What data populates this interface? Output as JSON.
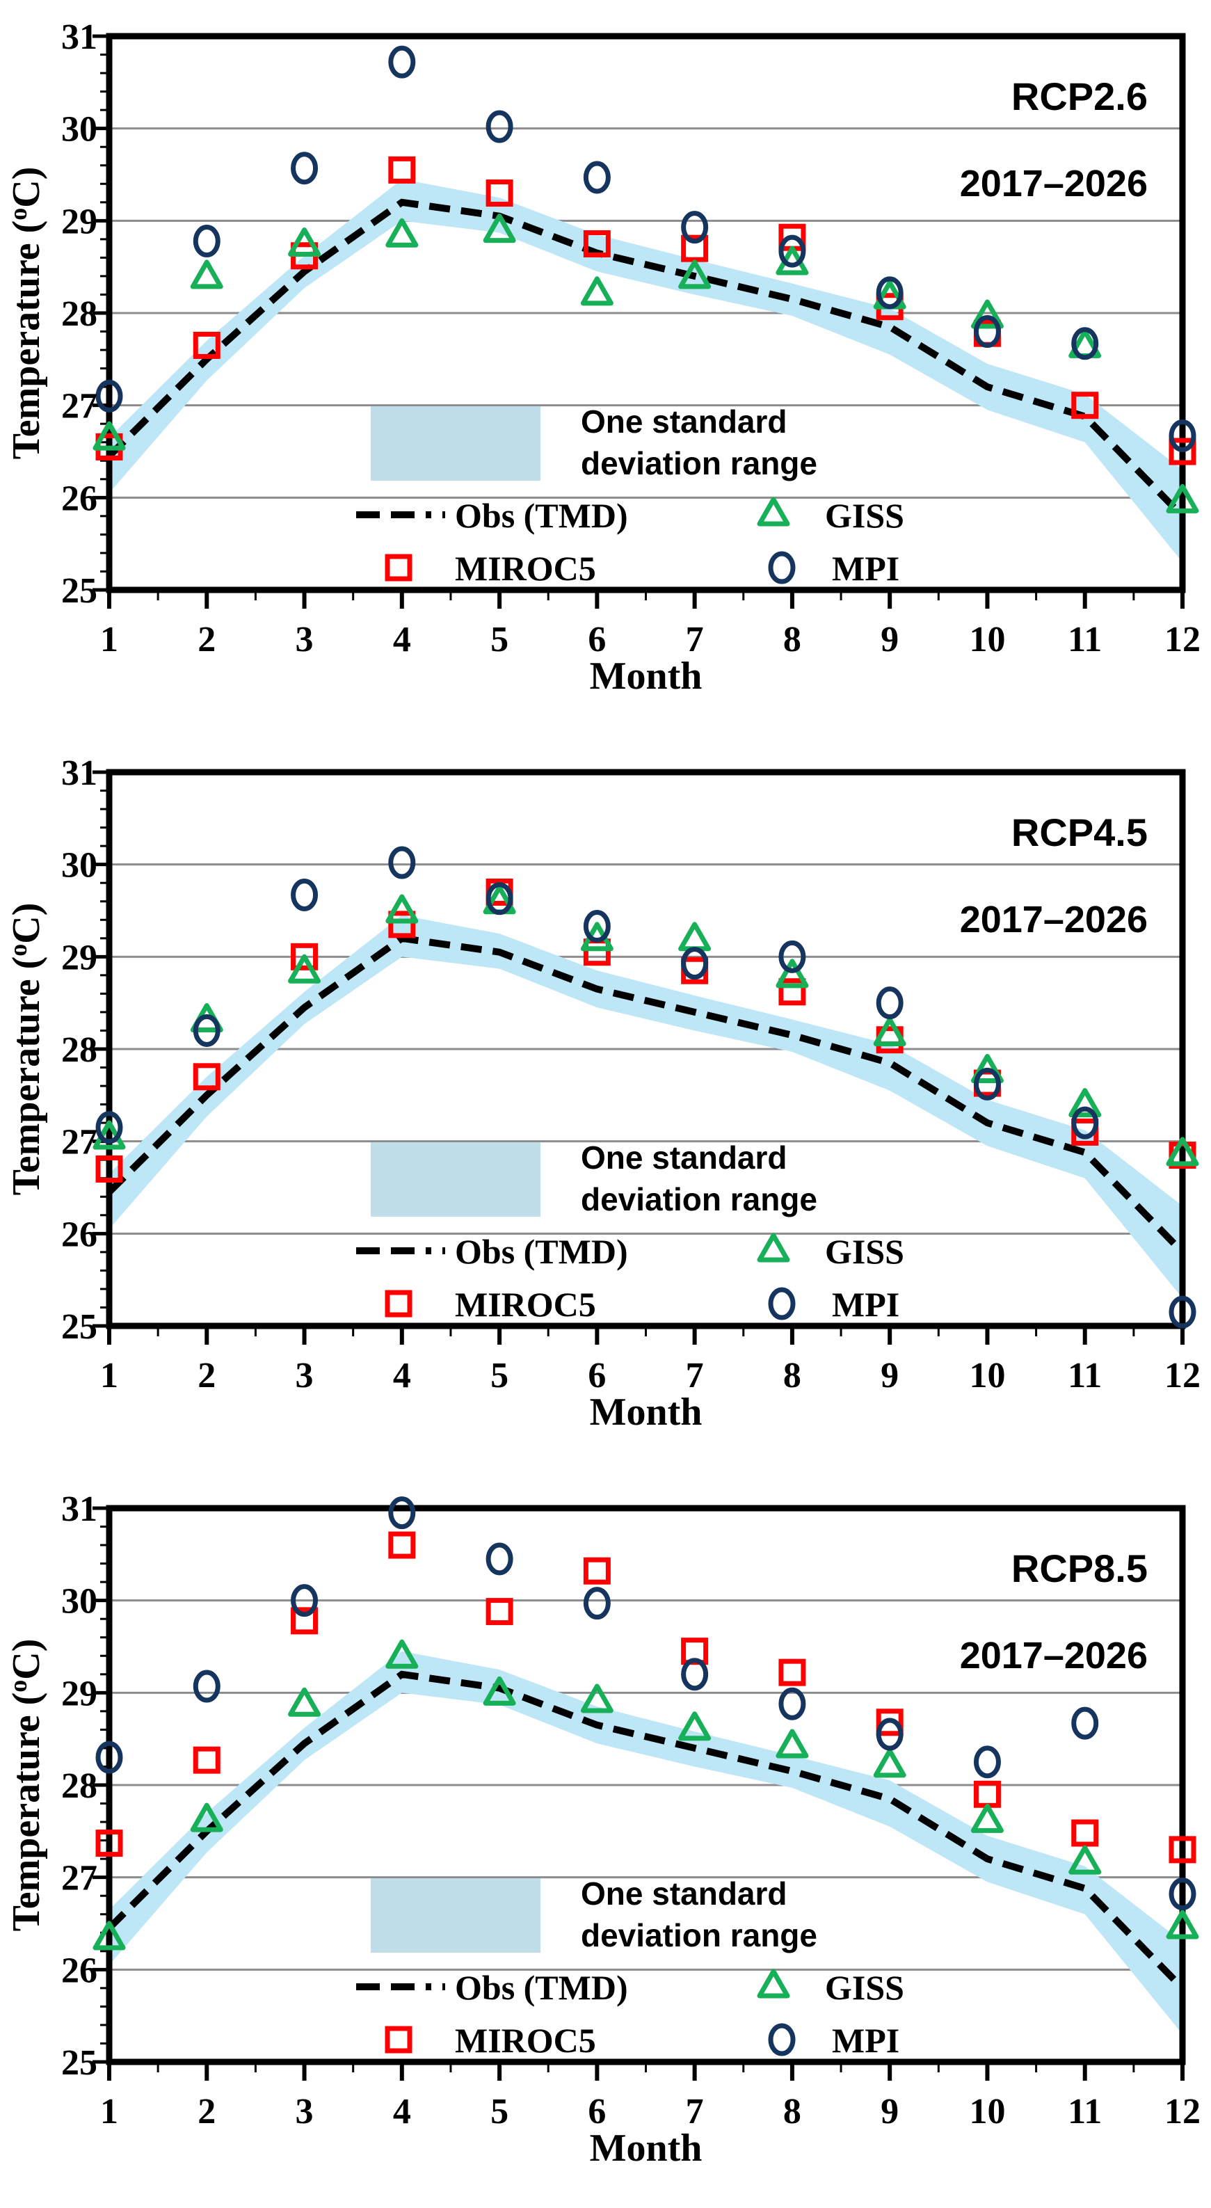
{
  "axes": {
    "x_label": "Month",
    "y_label_prefix": "Temperature (",
    "y_label_degree": "o",
    "y_label_suffix": "C)",
    "y_ticks": [
      25,
      26,
      27,
      28,
      29,
      30,
      31
    ],
    "x_ticks": [
      1,
      2,
      3,
      4,
      5,
      6,
      7,
      8,
      9,
      10,
      11,
      12
    ],
    "ylim": [
      25,
      31
    ],
    "grid_values": [
      26,
      27,
      28,
      29,
      30
    ]
  },
  "legend": {
    "band_label_line1": "One standard",
    "band_label_line2": "deviation range",
    "obs_label": "Obs (TMD)",
    "giss_label": "GISS",
    "miroc5_label": "MIROC5",
    "mpi_label": "MPI"
  },
  "colors": {
    "red": "#FF0000",
    "green": "#17B058",
    "navy": "#16355E",
    "band": "#BDE6F7",
    "legend_box": "#BFDEE9",
    "gridline": "#8C8C8C",
    "obs_line": "#000000",
    "text": "#000000"
  },
  "chart_data": [
    {
      "type": "line+scatter",
      "title": "RCP2.6",
      "period": "2017–2026",
      "xlabel": "Month",
      "ylabel": "Temperature (°C)",
      "ylim": [
        25,
        31
      ],
      "months": [
        1,
        2,
        3,
        4,
        5,
        6,
        7,
        8,
        9,
        10,
        11,
        12
      ],
      "obs_tmd": [
        26.45,
        27.5,
        28.45,
        29.2,
        29.05,
        28.65,
        28.4,
        28.15,
        27.85,
        27.2,
        26.88,
        25.8
      ],
      "std_band_upper": [
        26.65,
        27.7,
        28.62,
        29.45,
        29.25,
        28.85,
        28.58,
        28.32,
        28.05,
        27.45,
        27.12,
        26.3
      ],
      "std_band_lower": [
        26.05,
        27.27,
        28.27,
        29.0,
        28.87,
        28.45,
        28.2,
        27.97,
        27.55,
        26.95,
        26.6,
        25.3
      ],
      "models": [
        {
          "name": "MIROC5",
          "marker": "square",
          "color_key": "red",
          "values": [
            26.55,
            27.65,
            28.62,
            29.55,
            29.3,
            28.75,
            28.7,
            28.82,
            28.07,
            27.78,
            27.0,
            26.5
          ]
        },
        {
          "name": "GISS",
          "marker": "triangle",
          "color_key": "green",
          "values": [
            26.65,
            28.4,
            28.75,
            28.85,
            28.9,
            28.22,
            28.4,
            28.55,
            28.18,
            27.97,
            27.65,
            25.97
          ]
        },
        {
          "name": "MPI",
          "marker": "circle",
          "color_key": "navy",
          "values": [
            27.1,
            28.78,
            29.57,
            30.72,
            30.02,
            29.47,
            28.93,
            28.67,
            28.22,
            27.8,
            27.67,
            26.67
          ]
        }
      ]
    },
    {
      "type": "line+scatter",
      "title": "RCP4.5",
      "period": "2017–2026",
      "xlabel": "Month",
      "ylabel": "Temperature (°C)",
      "ylim": [
        25,
        31
      ],
      "months": [
        1,
        2,
        3,
        4,
        5,
        6,
        7,
        8,
        9,
        10,
        11,
        12
      ],
      "obs_tmd": [
        26.45,
        27.5,
        28.45,
        29.2,
        29.05,
        28.65,
        28.4,
        28.15,
        27.85,
        27.2,
        26.88,
        25.8
      ],
      "std_band_upper": [
        26.65,
        27.7,
        28.62,
        29.45,
        29.25,
        28.85,
        28.58,
        28.32,
        28.05,
        27.45,
        27.12,
        26.3
      ],
      "std_band_lower": [
        26.05,
        27.27,
        28.27,
        29.0,
        28.87,
        28.45,
        28.2,
        27.97,
        27.55,
        26.95,
        26.6,
        25.3
      ],
      "models": [
        {
          "name": "MIROC5",
          "marker": "square",
          "color_key": "red",
          "values": [
            26.7,
            27.7,
            29.0,
            29.35,
            29.7,
            29.05,
            28.85,
            28.62,
            28.1,
            27.63,
            27.1,
            26.85
          ]
        },
        {
          "name": "GISS",
          "marker": "triangle",
          "color_key": "green",
          "values": [
            27.05,
            28.32,
            28.85,
            29.5,
            29.6,
            29.2,
            29.2,
            28.8,
            28.17,
            27.77,
            27.4,
            26.87
          ]
        },
        {
          "name": "MPI",
          "marker": "circle",
          "color_key": "navy",
          "values": [
            27.15,
            28.2,
            29.67,
            30.02,
            29.63,
            29.33,
            28.93,
            29.0,
            28.5,
            27.62,
            27.2,
            25.15
          ]
        }
      ]
    },
    {
      "type": "line+scatter",
      "title": "RCP8.5",
      "period": "2017–2026",
      "xlabel": "Month",
      "ylabel": "Temperature (°C)",
      "ylim": [
        25,
        31
      ],
      "months": [
        1,
        2,
        3,
        4,
        5,
        6,
        7,
        8,
        9,
        10,
        11,
        12
      ],
      "obs_tmd": [
        26.45,
        27.5,
        28.45,
        29.2,
        29.05,
        28.65,
        28.4,
        28.15,
        27.85,
        27.2,
        26.88,
        25.8
      ],
      "std_band_upper": [
        26.65,
        27.7,
        28.62,
        29.45,
        29.25,
        28.85,
        28.58,
        28.32,
        28.05,
        27.45,
        27.12,
        26.3
      ],
      "std_band_lower": [
        26.05,
        27.27,
        28.27,
        29.0,
        28.87,
        28.45,
        28.2,
        27.97,
        27.55,
        26.95,
        26.6,
        25.3
      ],
      "models": [
        {
          "name": "MIROC5",
          "marker": "square",
          "color_key": "red",
          "values": [
            27.37,
            28.27,
            29.78,
            30.6,
            29.88,
            30.32,
            29.45,
            29.22,
            28.68,
            27.9,
            27.48,
            27.3
          ]
        },
        {
          "name": "GISS",
          "marker": "triangle",
          "color_key": "green",
          "values": [
            26.35,
            27.63,
            28.88,
            29.4,
            29.0,
            28.92,
            28.62,
            28.43,
            28.22,
            27.62,
            27.17,
            26.47
          ]
        },
        {
          "name": "MPI",
          "marker": "circle",
          "color_key": "navy",
          "values": [
            28.3,
            29.07,
            30.0,
            30.95,
            30.45,
            29.97,
            29.2,
            28.88,
            28.55,
            28.25,
            28.67,
            26.82
          ]
        }
      ]
    }
  ]
}
